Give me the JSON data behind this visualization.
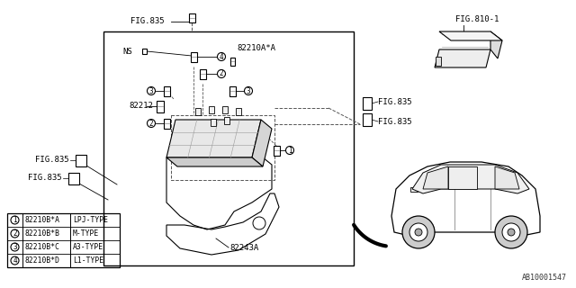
{
  "bg_color": "#ffffff",
  "fig_width": 6.4,
  "fig_height": 3.2,
  "part_number": "AB10001547",
  "legend_items": [
    {
      "num": "1",
      "code": "82210B*A",
      "type": "LPJ-TYPE"
    },
    {
      "num": "2",
      "code": "82210B*B",
      "type": "M-TYPE"
    },
    {
      "num": "3",
      "code": "82210B*C",
      "type": "A3-TYPE"
    },
    {
      "num": "4",
      "code": "82210B*D",
      "type": "L1-TYPE"
    }
  ],
  "labels": {
    "fig835_top": "FIG.835",
    "fig835_right1": "FIG.835",
    "fig835_right2": "FIG.835",
    "fig835_left1": "FIG.835",
    "fig835_left2": "FIG.835",
    "fig810": "FIG.810-1",
    "ns_label": "NS",
    "part_82210": "82210A*A",
    "part_82212": "82212",
    "part_82243": "82243A"
  },
  "line_color": "#000000",
  "dashed_color": "#555555"
}
